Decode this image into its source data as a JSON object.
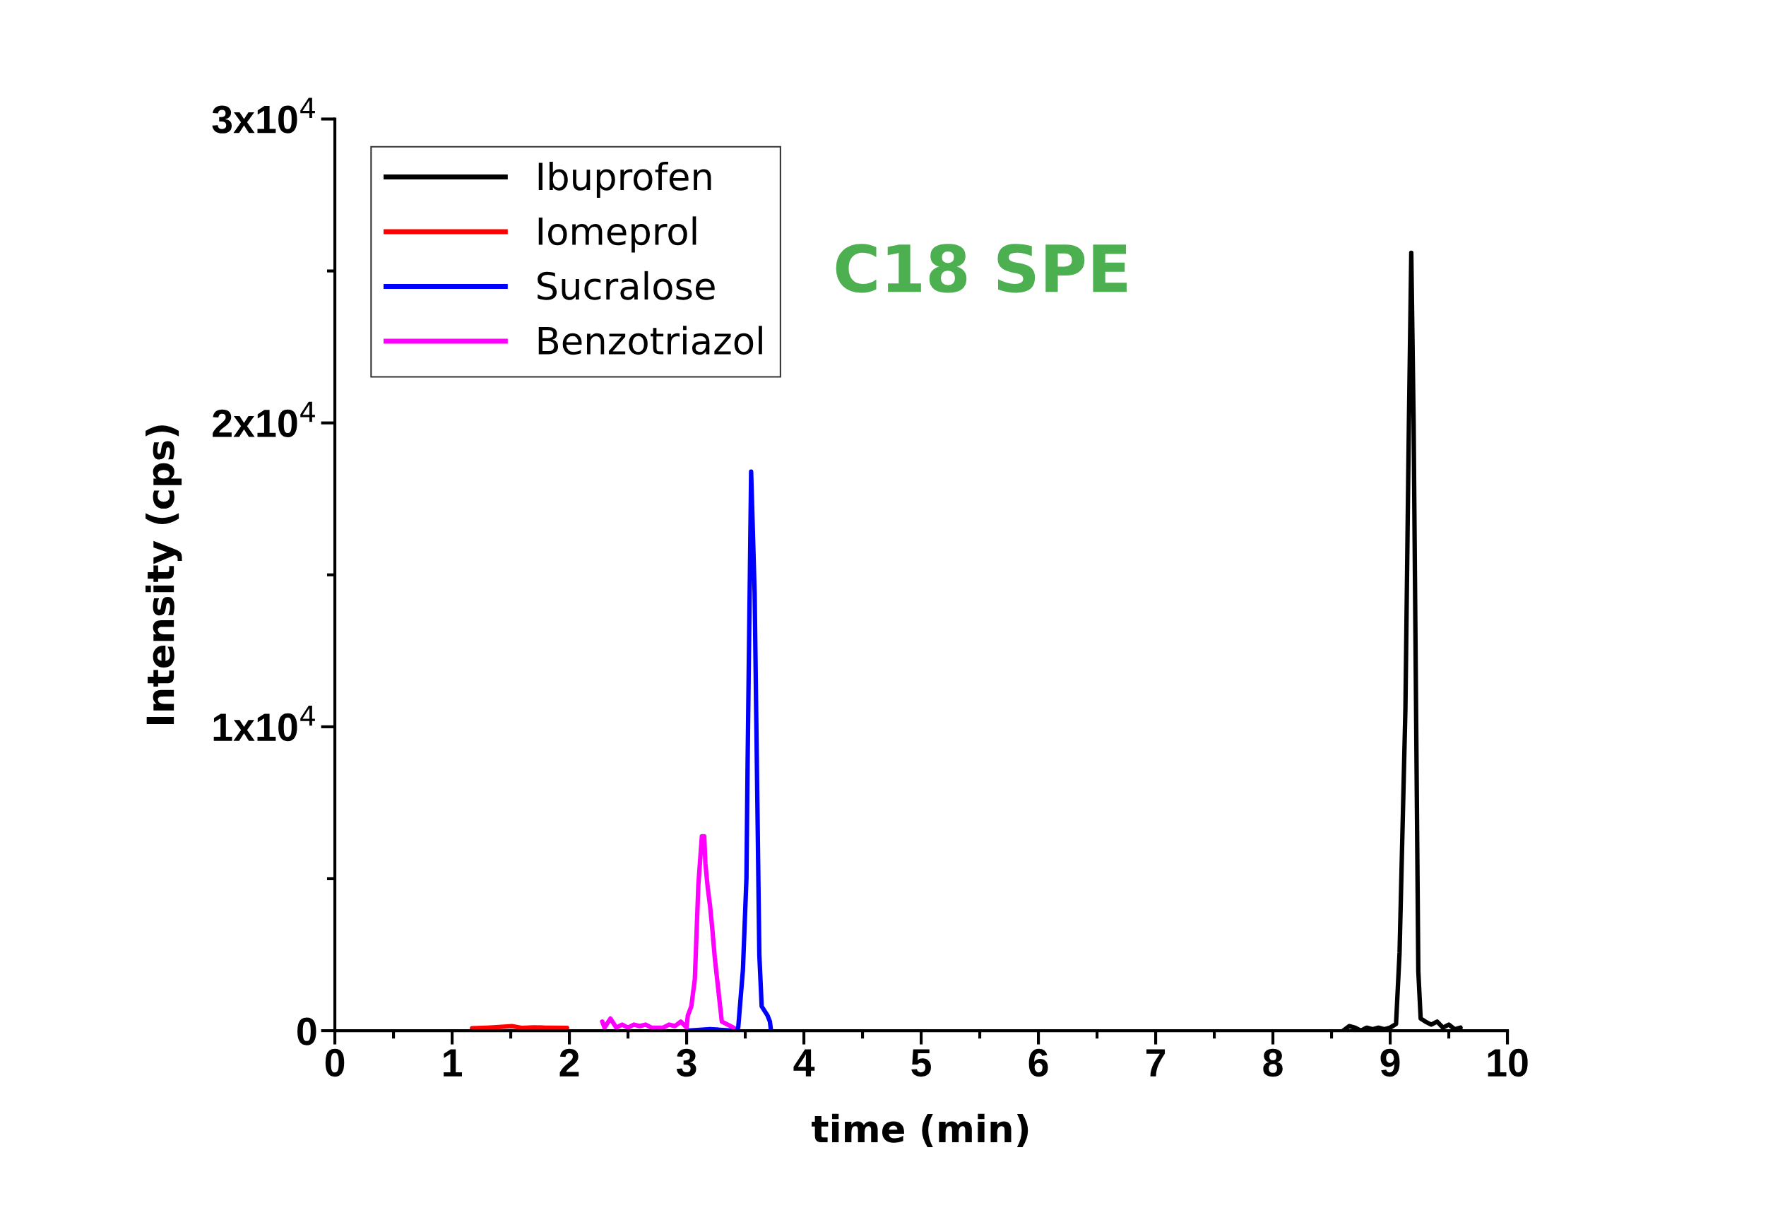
{
  "chart_data": {
    "type": "line",
    "xlabel": "time (min)",
    "ylabel": "Intensity (cps)",
    "xlim": [
      0,
      10
    ],
    "xticks": [
      0,
      1,
      2,
      3,
      4,
      5,
      6,
      7,
      8,
      9,
      10
    ],
    "ylim": [
      0,
      30000
    ],
    "yticks": [
      0,
      {
        "value": 10000,
        "label": "1x10$^{4}$"
      },
      {
        "value": 20000,
        "label": "2x10$^{4}$"
      },
      {
        "value": 30000,
        "label": "3x10$^{4}$"
      }
    ],
    "grid": false,
    "legend": "top left",
    "marker": "none",
    "line_style": "solid",
    "annotations": [
      "C18 SPE"
    ],
    "series": [
      {
        "name": "Ibuprofen",
        "color": "#000000",
        "x": [
          8.6,
          8.65,
          8.7,
          8.75,
          8.8,
          8.85,
          8.9,
          8.95,
          9.0,
          9.05,
          9.08,
          9.13,
          9.16,
          9.18,
          9.2,
          9.24,
          9.26,
          9.3,
          9.35,
          9.4,
          9.45,
          9.5,
          9.55,
          9.6
        ],
        "values": [
          0,
          150,
          100,
          0,
          100,
          50,
          100,
          50,
          100,
          220,
          2560,
          10600,
          20100,
          25600,
          20000,
          1950,
          400,
          300,
          200,
          300,
          100,
          200,
          50,
          100
        ]
      },
      {
        "name": "Iomeprol",
        "color": "#ff0000",
        "x": [
          1.17,
          1.3,
          1.4,
          1.51,
          1.6,
          1.7,
          1.8,
          1.98
        ],
        "values": [
          80,
          100,
          120,
          150,
          90,
          110,
          100,
          90
        ]
      },
      {
        "name": "Sucralose",
        "color": "#0000ff",
        "x": [
          3.0,
          3.2,
          3.4,
          3.44,
          3.48,
          3.51,
          3.52,
          3.55,
          3.58,
          3.61,
          3.62,
          3.64,
          3.69,
          3.71,
          3.72
        ],
        "values": [
          0,
          50,
          0,
          100,
          2000,
          5000,
          8800,
          18400,
          14400,
          5500,
          2500,
          800,
          500,
          300,
          0
        ]
      },
      {
        "name": "Benzotriazol",
        "color": "#ff00ff",
        "x": [
          2.28,
          2.3,
          2.35,
          2.4,
          2.45,
          2.5,
          2.55,
          2.6,
          2.65,
          2.7,
          2.8,
          2.85,
          2.9,
          2.95,
          3.0,
          3.01,
          3.04,
          3.07,
          3.1,
          3.13,
          3.15,
          3.16,
          3.18,
          3.2,
          3.22,
          3.24,
          3.3,
          3.4
        ],
        "values": [
          300,
          100,
          400,
          100,
          200,
          100,
          200,
          150,
          200,
          100,
          100,
          200,
          150,
          300,
          100,
          500,
          800,
          1700,
          4800,
          6400,
          6400,
          5500,
          4700,
          4100,
          3300,
          2400,
          300,
          100
        ]
      }
    ]
  }
}
